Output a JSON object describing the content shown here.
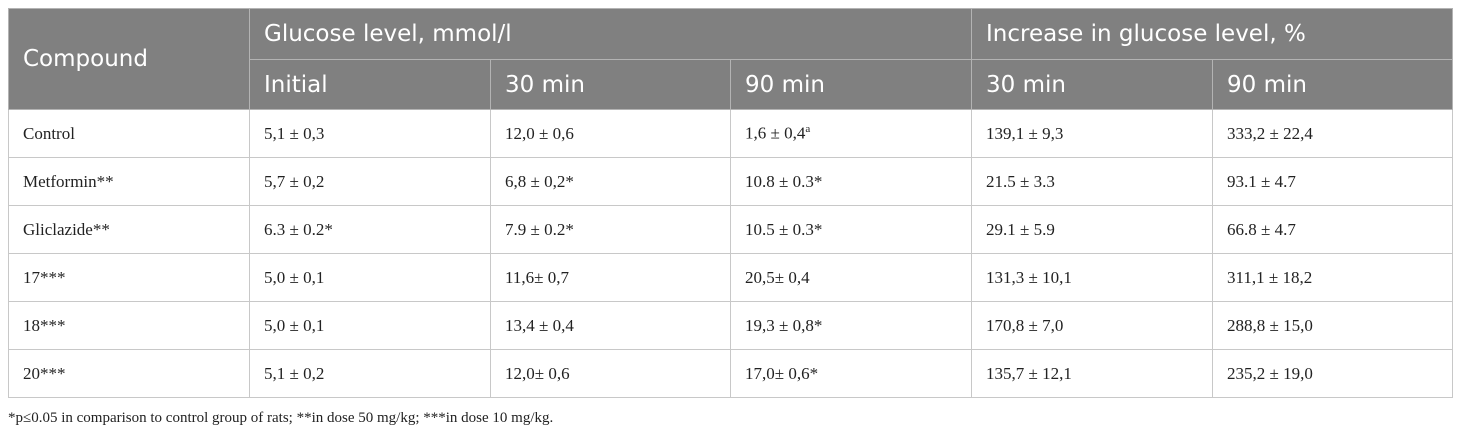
{
  "table": {
    "header": {
      "compound": "Compound",
      "group1": "Glucose level, mmol/l",
      "group2": "Increase in glucose level, %",
      "sub": [
        "Initial",
        "30 min",
        "90 min",
        "30 min",
        "90 min"
      ]
    },
    "rows": [
      [
        "Control",
        "5,1 ± 0,3",
        "12,0 ± 0,6",
        {
          "text": "1,6 ± 0,4",
          "sup": "a"
        },
        "139,1 ± 9,3",
        "333,2 ± 22,4"
      ],
      [
        "Metformin**",
        "5,7 ± 0,2",
        "6,8 ± 0,2*",
        "10.8 ± 0.3*",
        "21.5 ± 3.3",
        "93.1 ± 4.7"
      ],
      [
        "Gliclazide**",
        "6.3 ± 0.2*",
        "7.9 ± 0.2*",
        "10.5 ± 0.3*",
        "29.1 ± 5.9",
        "66.8 ± 4.7"
      ],
      [
        "17***",
        "5,0 ± 0,1",
        "11,6± 0,7",
        "20,5± 0,4",
        "131,3 ± 10,1",
        "311,1 ± 18,2"
      ],
      [
        "18***",
        "5,0 ± 0,1",
        "13,4 ± 0,4",
        "19,3 ± 0,8*",
        "170,8 ± 7,0",
        "288,8 ± 15,0"
      ],
      [
        "20***",
        "5,1 ± 0,2",
        "12,0± 0,6",
        "17,0± 0,6*",
        "135,7 ± 12,1",
        "235,2 ± 19,0"
      ]
    ],
    "footnote": "*p≤0.05 in comparison to control group of rats; **in dose 50 mg/kg; ***in dose 10 mg/kg."
  }
}
